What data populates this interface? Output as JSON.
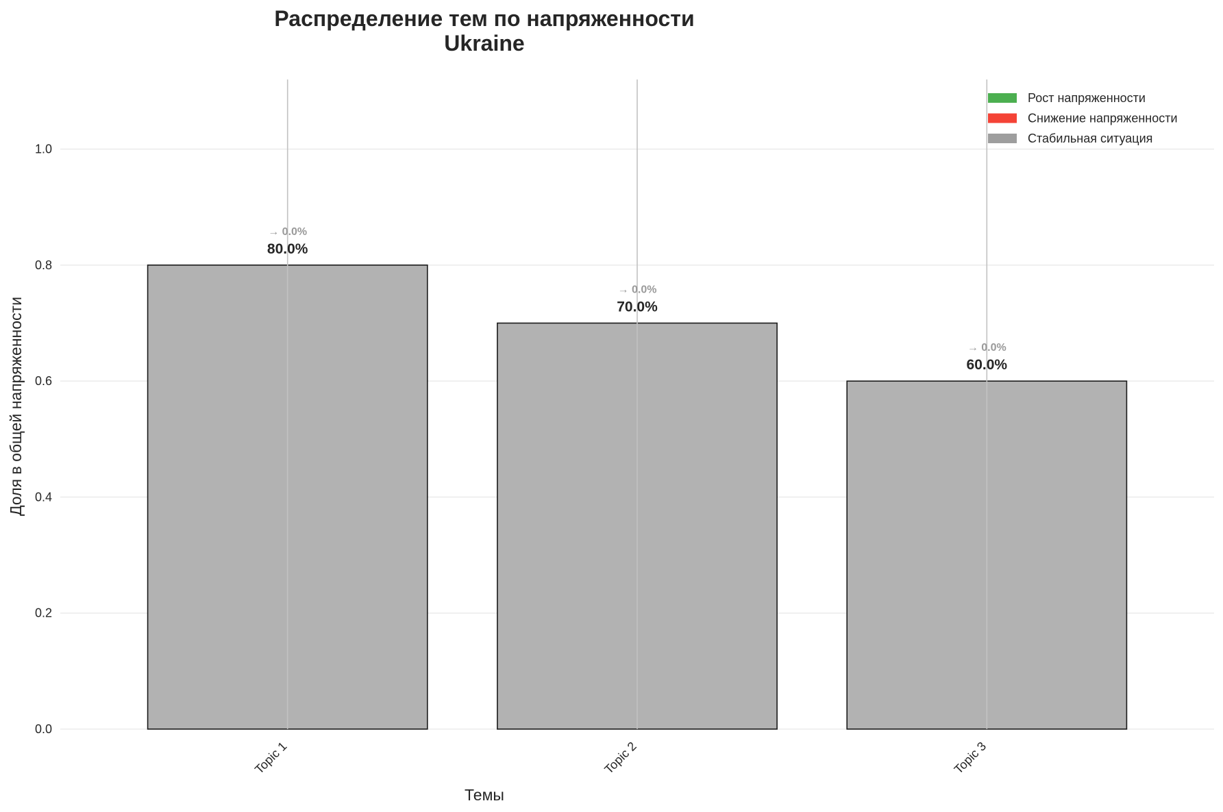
{
  "chart_data": {
    "type": "bar",
    "title": "Распределение тем по напряженности",
    "subtitle": "Ukraine",
    "xlabel": "Темы",
    "ylabel": "Доля в общей напряженности",
    "categories": [
      "Topic 1",
      "Topic 2",
      "Topic 3"
    ],
    "values": [
      0.8,
      0.7,
      0.6
    ],
    "value_labels": [
      "80.0%",
      "70.0%",
      "60.0%"
    ],
    "change_labels": [
      "→ 0.0%",
      "→ 0.0%",
      "→ 0.0%"
    ],
    "ylim": [
      0,
      1.12
    ],
    "yticks": [
      0.0,
      0.2,
      0.4,
      0.6,
      0.8,
      1.0
    ],
    "ytick_labels": [
      "0.0",
      "0.2",
      "0.4",
      "0.6",
      "0.8",
      "1.0"
    ],
    "grid": "horizontal",
    "legend_position": "top-right",
    "legend": [
      {
        "label": "Рост напряженности",
        "color": "#4caf50"
      },
      {
        "label": "Снижение напряженности",
        "color": "#f44336"
      },
      {
        "label": "Стабильная ситуация",
        "color": "#9e9e9e"
      }
    ],
    "bar_color": "#b2b2b2",
    "bar_edge_color": "#1a1a1a"
  }
}
